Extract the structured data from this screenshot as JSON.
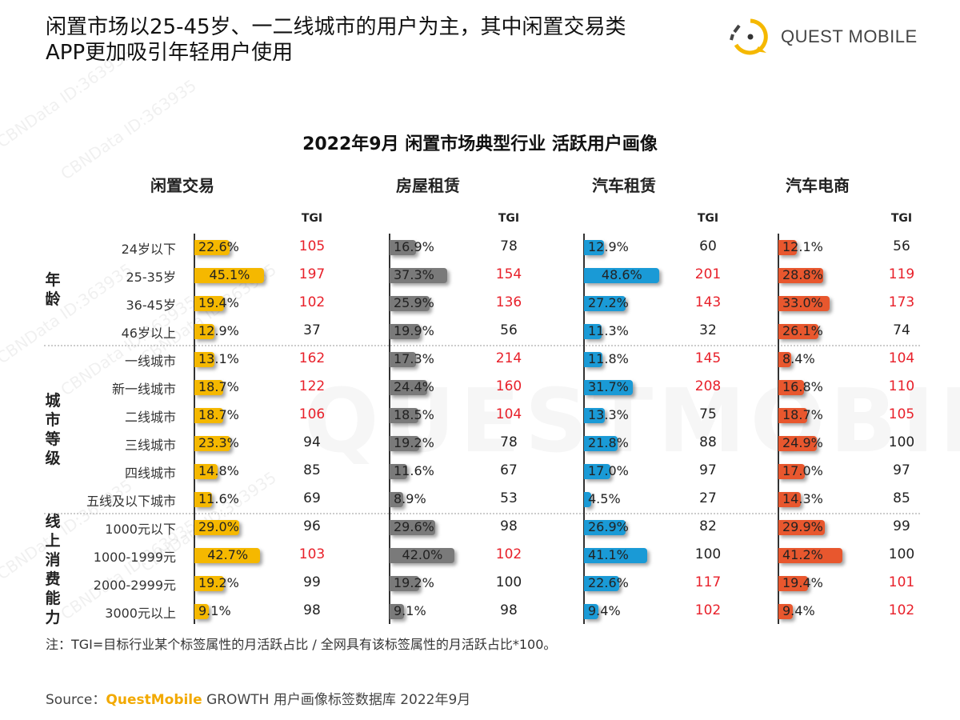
{
  "header": {
    "title_line1": "闲置市场以25-45岁、一二线城市的用户为主，其中闲置交易类",
    "title_line2": "APP更加吸引年轻用户使用",
    "logo_text": "QUEST MOBILE"
  },
  "watermark": "CBNData ID:363935",
  "watermark_big": "QUESTMOBILE",
  "chart_data": {
    "type": "bar",
    "orientation": "horizontal",
    "title": "2022年9月 闲置市场典型行业 活跃用户画像",
    "tgi_label": "TGI",
    "value_unit": "%",
    "groups": [
      {
        "name": "年龄",
        "categories": [
          "24岁以下",
          "25-35岁",
          "36-45岁",
          "46岁以上"
        ]
      },
      {
        "name": "城市等级",
        "categories": [
          "一线城市",
          "新一线城市",
          "二线城市",
          "三线城市",
          "四线城市",
          "五线及以下城市"
        ]
      },
      {
        "name": "线上消费能力",
        "categories": [
          "1000元以下",
          "1000-1999元",
          "2000-2999元",
          "3000元以上"
        ]
      }
    ],
    "categories": [
      "24岁以下",
      "25-35岁",
      "36-45岁",
      "46岁以上",
      "一线城市",
      "新一线城市",
      "二线城市",
      "三线城市",
      "四线城市",
      "五线及以下城市",
      "1000元以下",
      "1000-1999元",
      "2000-2999元",
      "3000元以上"
    ],
    "series": [
      {
        "name": "闲置交易",
        "color": "#f5b800",
        "values": [
          22.6,
          45.1,
          19.4,
          12.9,
          13.1,
          18.7,
          18.7,
          23.3,
          14.8,
          11.6,
          29.0,
          42.7,
          19.2,
          9.1
        ],
        "tgi": [
          105,
          197,
          102,
          37,
          162,
          122,
          106,
          94,
          85,
          69,
          96,
          103,
          99,
          98
        ]
      },
      {
        "name": "房屋租赁",
        "color": "#7a7a7a",
        "values": [
          16.9,
          37.3,
          25.9,
          19.9,
          17.3,
          24.4,
          18.5,
          19.2,
          11.6,
          8.9,
          29.6,
          42.0,
          19.2,
          9.1
        ],
        "tgi": [
          78,
          154,
          136,
          56,
          214,
          160,
          104,
          78,
          67,
          53,
          98,
          102,
          100,
          98
        ]
      },
      {
        "name": "汽车租赁",
        "color": "#1a9ad6",
        "values": [
          12.9,
          48.6,
          27.2,
          11.3,
          11.8,
          31.7,
          13.3,
          21.8,
          17.0,
          4.5,
          26.9,
          41.1,
          22.6,
          9.4
        ],
        "tgi": [
          60,
          201,
          143,
          32,
          145,
          208,
          75,
          88,
          97,
          27,
          82,
          100,
          117,
          102
        ]
      },
      {
        "name": "汽车电商",
        "color": "#e8572e",
        "values": [
          12.1,
          28.8,
          33.0,
          26.1,
          8.4,
          16.8,
          18.7,
          24.9,
          17.0,
          14.3,
          29.9,
          41.2,
          19.4,
          9.4
        ],
        "tgi": [
          56,
          119,
          173,
          74,
          104,
          110,
          105,
          100,
          97,
          85,
          99,
          100,
          101,
          102
        ]
      }
    ],
    "tgi_highlight_color": "#e8202a",
    "tgi_normal_color": "#222222"
  },
  "footer": {
    "note": "注：TGI=目标行业某个标签属性的月活跃占比 / 全网具有该标签属性的月活跃占比*100。",
    "source_prefix": "Source：",
    "source_brand": "QuestMobile",
    "source_rest": " GROWTH 用户画像标签数据库 2022年9月"
  }
}
